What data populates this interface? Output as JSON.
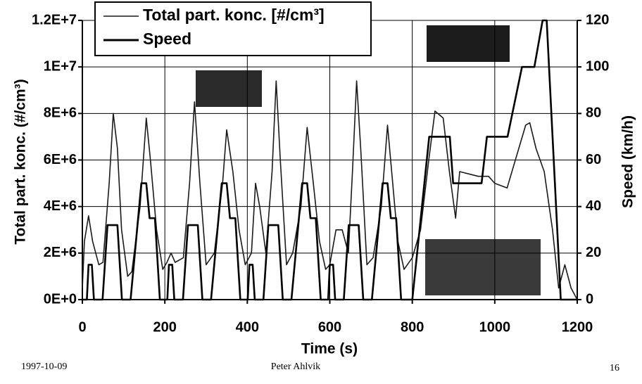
{
  "chart_data": {
    "type": "line",
    "x_label": "Time (s)",
    "y_label": "Total part. konc. (#/cm³)",
    "y2_label": "Speed (km/h)",
    "xlim": [
      0,
      1200
    ],
    "xticks": [
      0,
      200,
      400,
      600,
      800,
      1000,
      1200
    ],
    "ylim": [
      0,
      12000000
    ],
    "yticks": [
      {
        "value": 0,
        "label": "0E+0"
      },
      {
        "value": 2000000,
        "label": "2E+6"
      },
      {
        "value": 4000000,
        "label": "4E+6"
      },
      {
        "value": 6000000,
        "label": "6E+6"
      },
      {
        "value": 8000000,
        "label": "8E+6"
      },
      {
        "value": 10000000,
        "label": "1E+7"
      },
      {
        "value": 12000000,
        "label": "1.2E+7"
      }
    ],
    "y2lim": [
      0,
      120
    ],
    "y2ticks": [
      0,
      20,
      40,
      60,
      80,
      100,
      120
    ],
    "grid": true,
    "legend": "top-left",
    "series": [
      {
        "name": "Total part. konc. [#/cm³]",
        "color": "#1a1a1a",
        "x": [
          0,
          5,
          15,
          25,
          40,
          50,
          65,
          75,
          85,
          95,
          110,
          120,
          140,
          155,
          165,
          180,
          195,
          205,
          215,
          225,
          245,
          260,
          272,
          285,
          300,
          320,
          340,
          350,
          365,
          380,
          395,
          410,
          420,
          430,
          445,
          460,
          470,
          480,
          495,
          510,
          530,
          545,
          560,
          575,
          590,
          600,
          615,
          630,
          645,
          655,
          665,
          675,
          690,
          705,
          725,
          740,
          750,
          765,
          780,
          800,
          820,
          840,
          855,
          875,
          890,
          905,
          915,
          960,
          985,
          1000,
          1030,
          1050,
          1075,
          1085,
          1100,
          1120,
          1140,
          1155,
          1170,
          1185,
          1200
        ],
        "values": [
          500000,
          2500000,
          3600000,
          2500000,
          1500000,
          1600000,
          5000000,
          8000000,
          6500000,
          3000000,
          1000000,
          1200000,
          4000000,
          7800000,
          6000000,
          3000000,
          1300000,
          1600000,
          2000000,
          1600000,
          1800000,
          5000000,
          8500000,
          5000000,
          1500000,
          2000000,
          5000000,
          7300000,
          5500000,
          3000000,
          1500000,
          2000000,
          5000000,
          4000000,
          2000000,
          5500000,
          9400000,
          6000000,
          1500000,
          2000000,
          4000000,
          7400000,
          5000000,
          2500000,
          1300000,
          1500000,
          3000000,
          3000000,
          2000000,
          5500000,
          9400000,
          6500000,
          1500000,
          1800000,
          4000000,
          7500000,
          5500000,
          2500000,
          1300000,
          1800000,
          3000000,
          6000000,
          8100000,
          7800000,
          5500000,
          3500000,
          5500000,
          5300000,
          5300000,
          5000000,
          4800000,
          6000000,
          7500000,
          7600000,
          6500000,
          5500000,
          3000000,
          500000,
          1500000,
          500000,
          0
        ]
      },
      {
        "name": "Speed",
        "color": "#000000",
        "axis": "y2",
        "x": [
          0,
          11,
          15,
          23,
          28,
          49,
          61,
          85,
          96,
          117,
          143,
          155,
          163,
          176,
          188,
          206,
          210,
          218,
          223,
          244,
          256,
          280,
          291,
          312,
          338,
          350,
          358,
          371,
          383,
          401,
          405,
          413,
          418,
          439,
          451,
          475,
          486,
          507,
          533,
          545,
          553,
          566,
          578,
          596,
          600,
          608,
          613,
          634,
          646,
          670,
          681,
          702,
          728,
          740,
          748,
          761,
          773,
          800,
          841,
          891,
          899,
          968,
          981,
          1031,
          1066,
          1096,
          1116,
          1126,
          1160,
          1180,
          1200
        ],
        "values": [
          0,
          0,
          15,
          15,
          0,
          0,
          32,
          32,
          0,
          0,
          50,
          50,
          35,
          35,
          0,
          0,
          15,
          15,
          0,
          0,
          32,
          32,
          0,
          0,
          50,
          50,
          35,
          35,
          0,
          0,
          15,
          15,
          0,
          0,
          32,
          32,
          0,
          0,
          50,
          50,
          35,
          35,
          0,
          0,
          15,
          15,
          0,
          0,
          32,
          32,
          0,
          0,
          50,
          50,
          35,
          35,
          0,
          0,
          70,
          70,
          50,
          50,
          70,
          70,
          100,
          100,
          120,
          120,
          0,
          0,
          0
        ]
      }
    ]
  },
  "footer": {
    "date": "1997-10-09",
    "author": "Peter Ahlvik",
    "page": "16"
  }
}
